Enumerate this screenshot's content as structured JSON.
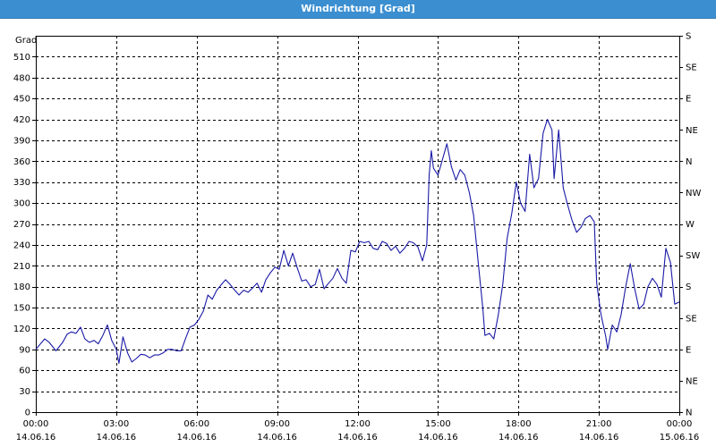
{
  "window": {
    "title": "Windrichtung [Grad]"
  },
  "chart_data": {
    "type": "line",
    "title": "Windrichtung [Grad]",
    "ylabel": "Grad",
    "xlabel": "",
    "ylim": [
      0,
      540
    ],
    "xlim_hours": [
      0,
      24
    ],
    "grid": true,
    "y_ticks": [
      0,
      30,
      60,
      90,
      120,
      150,
      180,
      210,
      240,
      270,
      300,
      330,
      360,
      390,
      420,
      450,
      480,
      510
    ],
    "right_axis_labels": [
      {
        "value": 0,
        "label": "N"
      },
      {
        "value": 45,
        "label": "NE"
      },
      {
        "value": 90,
        "label": "E"
      },
      {
        "value": 135,
        "label": "SE"
      },
      {
        "value": 180,
        "label": "S"
      },
      {
        "value": 225,
        "label": "SW"
      },
      {
        "value": 270,
        "label": "W"
      },
      {
        "value": 315,
        "label": "NW"
      },
      {
        "value": 360,
        "label": "N"
      },
      {
        "value": 405,
        "label": "NE"
      },
      {
        "value": 450,
        "label": "E"
      },
      {
        "value": 495,
        "label": "SE"
      },
      {
        "value": 540,
        "label": "S"
      }
    ],
    "x_ticks": [
      {
        "hour": 0,
        "time": "00:00",
        "date": "14.06.16"
      },
      {
        "hour": 3,
        "time": "03:00",
        "date": "14.06.16"
      },
      {
        "hour": 6,
        "time": "06:00",
        "date": "14.06.16"
      },
      {
        "hour": 9,
        "time": "09:00",
        "date": "14.06.16"
      },
      {
        "hour": 12,
        "time": "12:00",
        "date": "14.06.16"
      },
      {
        "hour": 15,
        "time": "15:00",
        "date": "14.06.16"
      },
      {
        "hour": 18,
        "time": "18:00",
        "date": "14.06.16"
      },
      {
        "hour": 21,
        "time": "21:00",
        "date": "14.06.16"
      },
      {
        "hour": 24,
        "time": "00:00",
        "date": "15.06.16"
      }
    ],
    "series": [
      {
        "color": "#1a1aa8",
        "points": [
          [
            0.0,
            90
          ],
          [
            0.33,
            105
          ],
          [
            0.5,
            100
          ],
          [
            0.75,
            88
          ],
          [
            1.0,
            100
          ],
          [
            1.17,
            112
          ],
          [
            1.33,
            115
          ],
          [
            1.5,
            113
          ],
          [
            1.67,
            122
          ],
          [
            1.83,
            105
          ],
          [
            2.0,
            100
          ],
          [
            2.17,
            103
          ],
          [
            2.33,
            98
          ],
          [
            2.5,
            110
          ],
          [
            2.67,
            125
          ],
          [
            2.83,
            103
          ],
          [
            3.0,
            90
          ],
          [
            3.1,
            70
          ],
          [
            3.25,
            108
          ],
          [
            3.42,
            85
          ],
          [
            3.58,
            72
          ],
          [
            3.75,
            77
          ],
          [
            3.92,
            83
          ],
          [
            4.08,
            82
          ],
          [
            4.25,
            78
          ],
          [
            4.42,
            82
          ],
          [
            4.58,
            82
          ],
          [
            4.75,
            85
          ],
          [
            4.92,
            90
          ],
          [
            5.08,
            90
          ],
          [
            5.25,
            88
          ],
          [
            5.42,
            88
          ],
          [
            5.58,
            105
          ],
          [
            5.75,
            122
          ],
          [
            5.92,
            125
          ],
          [
            6.08,
            133
          ],
          [
            6.25,
            145
          ],
          [
            6.42,
            168
          ],
          [
            6.58,
            162
          ],
          [
            6.75,
            175
          ],
          [
            6.92,
            183
          ],
          [
            7.08,
            190
          ],
          [
            7.25,
            183
          ],
          [
            7.42,
            175
          ],
          [
            7.58,
            168
          ],
          [
            7.75,
            175
          ],
          [
            7.92,
            172
          ],
          [
            8.08,
            178
          ],
          [
            8.25,
            185
          ],
          [
            8.42,
            172
          ],
          [
            8.58,
            190
          ],
          [
            8.75,
            200
          ],
          [
            8.92,
            208
          ],
          [
            9.08,
            205
          ],
          [
            9.25,
            232
          ],
          [
            9.42,
            210
          ],
          [
            9.58,
            228
          ],
          [
            9.75,
            207
          ],
          [
            9.92,
            188
          ],
          [
            10.08,
            190
          ],
          [
            10.25,
            180
          ],
          [
            10.42,
            183
          ],
          [
            10.58,
            205
          ],
          [
            10.75,
            177
          ],
          [
            10.92,
            185
          ],
          [
            11.08,
            192
          ],
          [
            11.25,
            206
          ],
          [
            11.42,
            192
          ],
          [
            11.58,
            185
          ],
          [
            11.75,
            232
          ],
          [
            11.92,
            230
          ],
          [
            12.08,
            245
          ],
          [
            12.25,
            243
          ],
          [
            12.42,
            245
          ],
          [
            12.58,
            235
          ],
          [
            12.75,
            233
          ],
          [
            12.92,
            245
          ],
          [
            13.08,
            242
          ],
          [
            13.25,
            232
          ],
          [
            13.42,
            238
          ],
          [
            13.58,
            228
          ],
          [
            13.75,
            235
          ],
          [
            13.92,
            245
          ],
          [
            14.08,
            243
          ],
          [
            14.25,
            237
          ],
          [
            14.42,
            217
          ],
          [
            14.58,
            240
          ],
          [
            14.67,
            340
          ],
          [
            14.75,
            375
          ],
          [
            14.83,
            350
          ],
          [
            15.0,
            340
          ],
          [
            15.17,
            363
          ],
          [
            15.33,
            385
          ],
          [
            15.5,
            352
          ],
          [
            15.67,
            333
          ],
          [
            15.83,
            348
          ],
          [
            16.0,
            340
          ],
          [
            16.17,
            315
          ],
          [
            16.33,
            282
          ],
          [
            16.5,
            215
          ],
          [
            16.67,
            150
          ],
          [
            16.75,
            110
          ],
          [
            16.92,
            113
          ],
          [
            17.08,
            105
          ],
          [
            17.25,
            140
          ],
          [
            17.42,
            185
          ],
          [
            17.58,
            250
          ],
          [
            17.75,
            285
          ],
          [
            17.92,
            330
          ],
          [
            18.08,
            300
          ],
          [
            18.25,
            288
          ],
          [
            18.42,
            370
          ],
          [
            18.58,
            322
          ],
          [
            18.75,
            335
          ],
          [
            18.92,
            400
          ],
          [
            19.08,
            420
          ],
          [
            19.25,
            405
          ],
          [
            19.33,
            335
          ],
          [
            19.5,
            405
          ],
          [
            19.67,
            322
          ],
          [
            19.83,
            298
          ],
          [
            20.0,
            275
          ],
          [
            20.17,
            258
          ],
          [
            20.33,
            265
          ],
          [
            20.5,
            278
          ],
          [
            20.67,
            282
          ],
          [
            20.83,
            273
          ],
          [
            20.92,
            185
          ],
          [
            21.08,
            140
          ],
          [
            21.25,
            110
          ],
          [
            21.33,
            90
          ],
          [
            21.5,
            125
          ],
          [
            21.67,
            115
          ],
          [
            21.83,
            140
          ],
          [
            22.0,
            180
          ],
          [
            22.17,
            213
          ],
          [
            22.33,
            178
          ],
          [
            22.5,
            148
          ],
          [
            22.67,
            155
          ],
          [
            22.83,
            180
          ],
          [
            23.0,
            192
          ],
          [
            23.17,
            183
          ],
          [
            23.33,
            165
          ],
          [
            23.5,
            235
          ],
          [
            23.67,
            215
          ],
          [
            23.83,
            155
          ],
          [
            24.0,
            158
          ]
        ]
      }
    ]
  }
}
